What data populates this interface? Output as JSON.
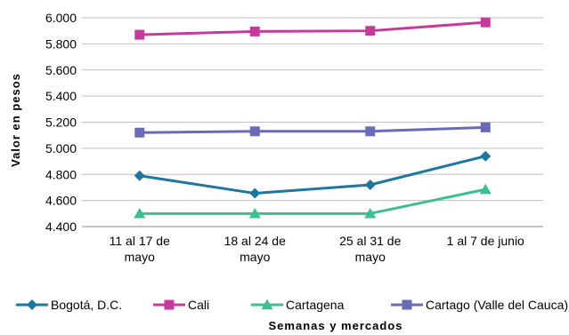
{
  "chart_data": {
    "type": "line",
    "categories": [
      [
        "11 al 17 de",
        "mayo"
      ],
      [
        "18 al 24 de",
        "mayo"
      ],
      [
        "25 al 31 de",
        "mayo"
      ],
      [
        "1 al 7 de junio"
      ]
    ],
    "series": [
      {
        "name": "Bogotá, D.C.",
        "color": "#1f77a0",
        "marker": "diamond",
        "values": [
          4790,
          4655,
          4720,
          4940
        ]
      },
      {
        "name": "Cali",
        "color": "#c43b9b",
        "marker": "square",
        "values": [
          5870,
          5895,
          5900,
          5965
        ]
      },
      {
        "name": "Cartagena",
        "color": "#3cbf8f",
        "marker": "triangle",
        "values": [
          4500,
          4500,
          4500,
          4685
        ]
      },
      {
        "name": "Cartago (Valle del Cauca)",
        "color": "#6b6bb5",
        "marker": "square",
        "values": [
          5120,
          5130,
          5130,
          5160
        ]
      }
    ],
    "yticks": [
      "4.400",
      "4.600",
      "4.800",
      "5.000",
      "5.200",
      "5.400",
      "5.600",
      "5.800",
      "6.000"
    ],
    "ylim": [
      4400,
      6000
    ],
    "ystep": 200,
    "ylabel": "Valor en pesos",
    "xlabel": "Semanas y mercados",
    "grid": true,
    "legend": "bottom"
  }
}
